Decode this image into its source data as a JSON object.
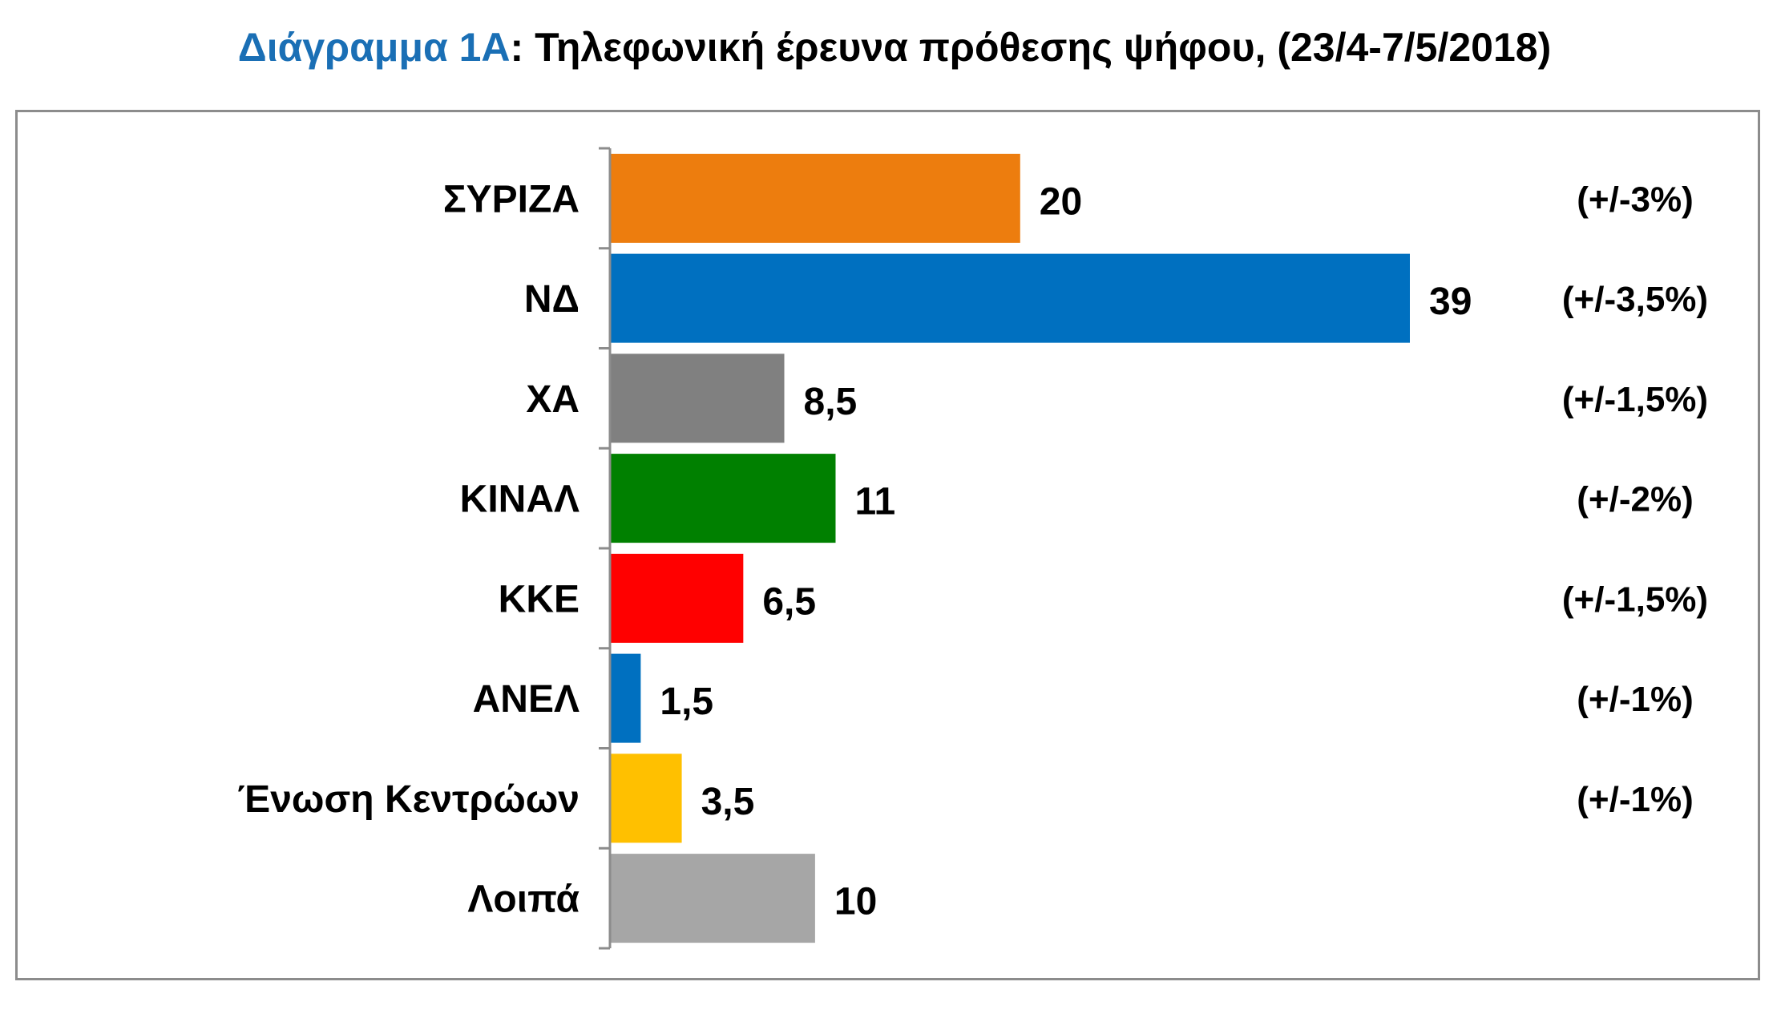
{
  "title": {
    "prefix": "Διάγραμμα 1Α",
    "text": ": Τηλεφωνική έρευνα πρόθεσης ψήφου,  (23/4-7/5/2018)"
  },
  "chart_data": {
    "type": "bar",
    "orientation": "horizontal",
    "categories": [
      "ΣΥΡΙΖΑ",
      "ΝΔ",
      "ΧΑ",
      "ΚΙΝΑΛ",
      "ΚΚΕ",
      "ΑΝΕΛ",
      "Ένωση Κεντρώων",
      "Λοιπά"
    ],
    "values": [
      20,
      39,
      8.5,
      11,
      6.5,
      1.5,
      3.5,
      10
    ],
    "value_labels": [
      "20",
      "39",
      "8,5",
      "11",
      "6,5",
      "1,5",
      "3,5",
      "10"
    ],
    "margin_of_error": [
      "(+/-3%)",
      "(+/-3,5%)",
      "(+/-1,5%)",
      "(+/-2%)",
      "(+/-1,5%)",
      "(+/-1%)",
      "(+/-1%)",
      ""
    ],
    "colors": [
      "#ed7d0e",
      "#0070c0",
      "#808080",
      "#008000",
      "#ff0000",
      "#0070c0",
      "#ffc000",
      "#a6a6a6"
    ],
    "xlim": [
      0,
      40
    ],
    "grid": false,
    "legend": "none"
  }
}
